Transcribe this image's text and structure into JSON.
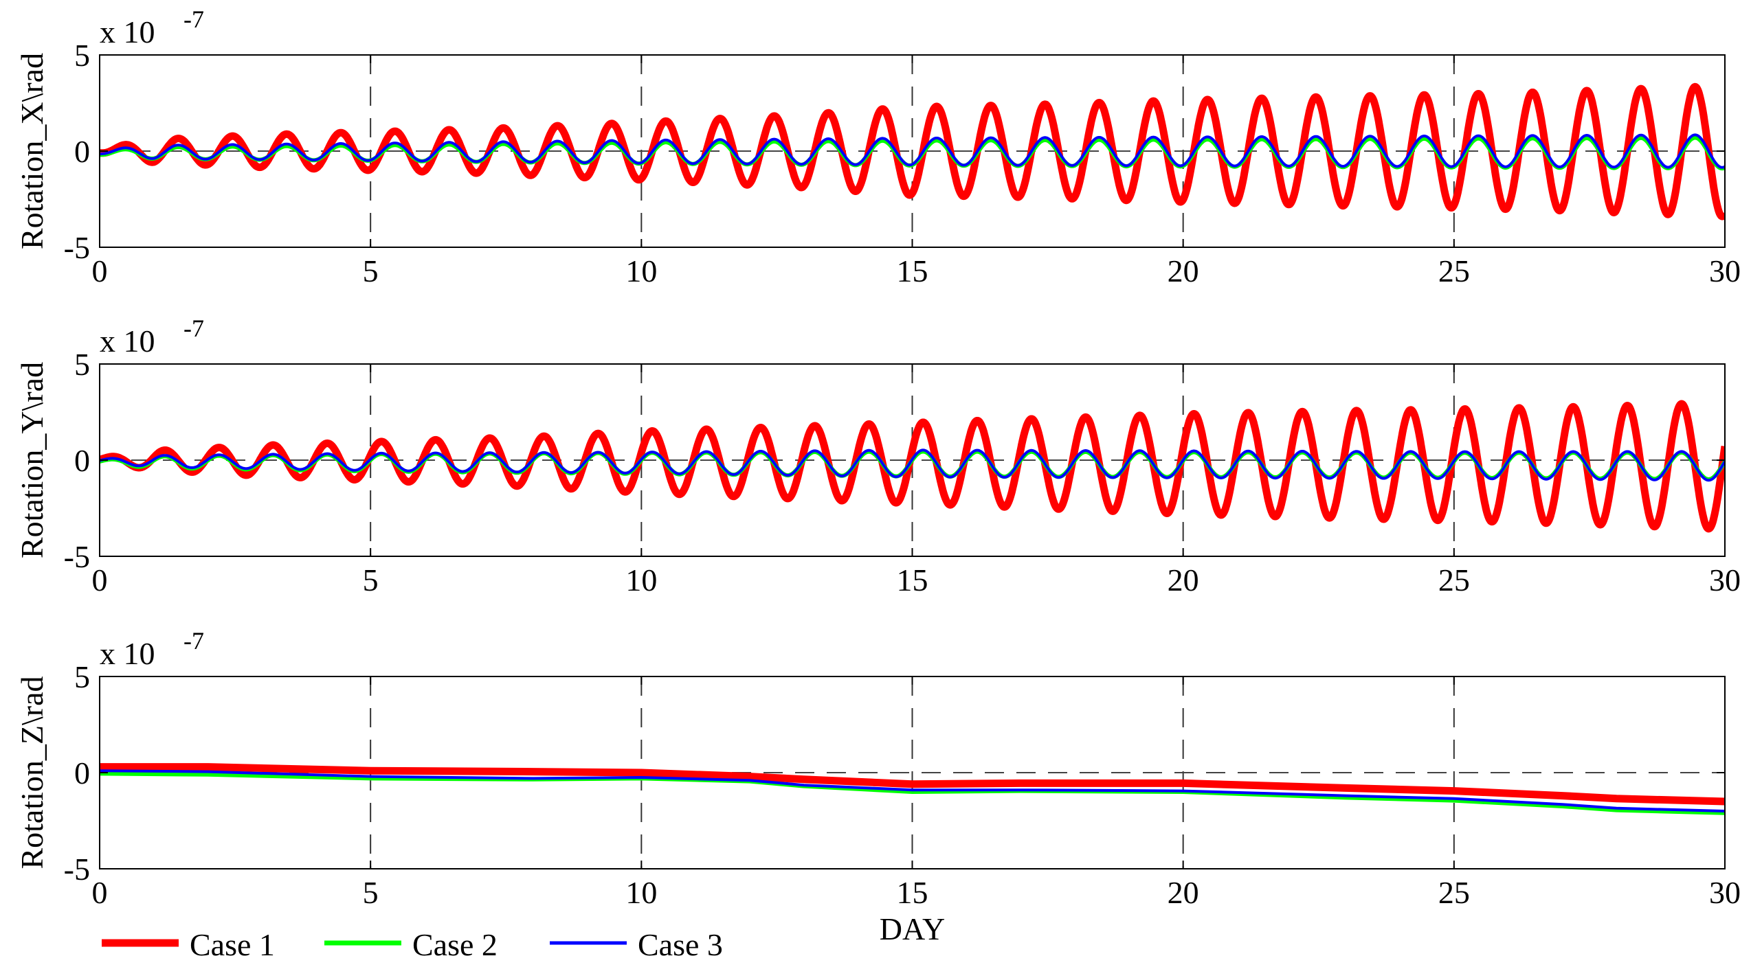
{
  "chart_data": [
    {
      "type": "line",
      "panel": "top",
      "ylabel": "Rotation_X\\rad",
      "exponent_label": "x 10",
      "exponent_power": "-7",
      "xlim": [
        0,
        30
      ],
      "ylim": [
        -5,
        5
      ],
      "xticks": [
        "0",
        "5",
        "10",
        "15",
        "20",
        "25",
        "30"
      ],
      "yticks": [
        "5",
        "0",
        "-5"
      ],
      "vertical_dashed_grid_at": [
        5,
        10,
        15,
        20,
        25
      ],
      "zero_dashed_line": true,
      "oscillation_period_days": 1.0,
      "oscillation_phase_days": 0.2,
      "series": [
        {
          "name": "Case 1",
          "color": "#ff0000",
          "offset": [
            [
              0,
              0
            ],
            [
              30,
              0
            ]
          ],
          "amplitude": [
            [
              0,
              0.1
            ],
            [
              1,
              0.6
            ],
            [
              3,
              0.85
            ],
            [
              5,
              1.0
            ],
            [
              7,
              1.15
            ],
            [
              10,
              1.5
            ],
            [
              13,
              1.9
            ],
            [
              15,
              2.3
            ],
            [
              17,
              2.4
            ],
            [
              20,
              2.65
            ],
            [
              23,
              2.85
            ],
            [
              25,
              2.95
            ],
            [
              27,
              3.1
            ],
            [
              30,
              3.4
            ]
          ]
        },
        {
          "name": "Case 2",
          "color": "#00ff00",
          "offset": [
            [
              0,
              -0.1
            ],
            [
              30,
              -0.1
            ]
          ],
          "amplitude": [
            [
              0,
              0.1
            ],
            [
              1,
              0.3
            ],
            [
              5,
              0.4
            ],
            [
              10,
              0.55
            ],
            [
              15,
              0.65
            ],
            [
              20,
              0.7
            ],
            [
              25,
              0.75
            ],
            [
              30,
              0.8
            ]
          ]
        },
        {
          "name": "Case 3",
          "color": "#0000ff",
          "offset": [
            [
              0,
              -0.05
            ],
            [
              30,
              0
            ]
          ],
          "amplitude": [
            [
              0,
              0.1
            ],
            [
              1,
              0.35
            ],
            [
              5,
              0.45
            ],
            [
              10,
              0.6
            ],
            [
              15,
              0.7
            ],
            [
              20,
              0.75
            ],
            [
              25,
              0.8
            ],
            [
              30,
              0.85
            ]
          ]
        }
      ]
    },
    {
      "type": "line",
      "panel": "middle",
      "ylabel": "Rotation_Y\\rad",
      "exponent_label": "x 10",
      "exponent_power": "-7",
      "xlim": [
        0,
        30
      ],
      "ylim": [
        -5,
        5
      ],
      "xticks": [
        "0",
        "5",
        "10",
        "15",
        "20",
        "25",
        "30"
      ],
      "yticks": [
        "5",
        "0",
        "-5"
      ],
      "vertical_dashed_grid_at": [
        5,
        10,
        15,
        20,
        25
      ],
      "zero_dashed_line": true,
      "oscillation_period_days": 1.0,
      "oscillation_phase_days": 0.95,
      "series": [
        {
          "name": "Case 1",
          "color": "#ff0000",
          "offset": [
            [
              0,
              0
            ],
            [
              30,
              -0.3
            ]
          ],
          "amplitude": [
            [
              0,
              0.1
            ],
            [
              1,
              0.5
            ],
            [
              3,
              0.8
            ],
            [
              5,
              1.0
            ],
            [
              8,
              1.3
            ],
            [
              10,
              1.6
            ],
            [
              13,
              1.9
            ],
            [
              15,
              2.1
            ],
            [
              18,
              2.4
            ],
            [
              20,
              2.6
            ],
            [
              23,
              2.8
            ],
            [
              25,
              2.9
            ],
            [
              28,
              3.1
            ],
            [
              30,
              3.3
            ]
          ]
        },
        {
          "name": "Case 2",
          "color": "#00ff00",
          "offset": [
            [
              0,
              -0.1
            ],
            [
              30,
              -0.3
            ]
          ],
          "amplitude": [
            [
              0,
              0.1
            ],
            [
              1,
              0.3
            ],
            [
              5,
              0.45
            ],
            [
              10,
              0.55
            ],
            [
              15,
              0.65
            ],
            [
              20,
              0.65
            ],
            [
              25,
              0.65
            ],
            [
              30,
              0.7
            ]
          ]
        },
        {
          "name": "Case 3",
          "color": "#0000ff",
          "offset": [
            [
              0,
              -0.05
            ],
            [
              30,
              -0.3
            ]
          ],
          "amplitude": [
            [
              0,
              0.1
            ],
            [
              1,
              0.3
            ],
            [
              5,
              0.45
            ],
            [
              10,
              0.55
            ],
            [
              15,
              0.7
            ],
            [
              20,
              0.7
            ],
            [
              25,
              0.7
            ],
            [
              30,
              0.75
            ]
          ]
        }
      ]
    },
    {
      "type": "line",
      "panel": "bottom",
      "ylabel": "Rotation_Z\\rad",
      "xlabel": "DAY",
      "exponent_label": "x 10",
      "exponent_power": "-7",
      "xlim": [
        0,
        30
      ],
      "ylim": [
        -5,
        5
      ],
      "xticks": [
        "0",
        "5",
        "10",
        "15",
        "20",
        "25",
        "30"
      ],
      "yticks": [
        "5",
        "0",
        "-5"
      ],
      "vertical_dashed_grid_at": [
        5,
        10,
        15,
        20,
        25
      ],
      "zero_dashed_line": true,
      "series": [
        {
          "name": "Case 1",
          "color": "#ff0000",
          "x": [
            0,
            2,
            5,
            8,
            10,
            12,
            13,
            15,
            17,
            20,
            23,
            25,
            27,
            28,
            30
          ],
          "y": [
            0.3,
            0.3,
            0.1,
            0.05,
            0.0,
            -0.2,
            -0.35,
            -0.6,
            -0.55,
            -0.55,
            -0.8,
            -0.95,
            -1.2,
            -1.35,
            -1.5
          ]
        },
        {
          "name": "Case 2",
          "color": "#00ff00",
          "x": [
            0,
            2,
            5,
            8,
            10,
            12,
            13,
            15,
            17,
            20,
            23,
            25,
            27,
            28,
            30
          ],
          "y": [
            -0.05,
            -0.1,
            -0.3,
            -0.35,
            -0.3,
            -0.45,
            -0.7,
            -1.0,
            -0.95,
            -1.0,
            -1.3,
            -1.45,
            -1.75,
            -1.95,
            -2.1
          ]
        },
        {
          "name": "Case 3",
          "color": "#0000ff",
          "x": [
            0,
            2,
            5,
            8,
            10,
            12,
            13,
            15,
            17,
            20,
            23,
            25,
            27,
            28,
            30
          ],
          "y": [
            0.1,
            0.05,
            -0.2,
            -0.3,
            -0.25,
            -0.4,
            -0.65,
            -0.9,
            -0.9,
            -0.95,
            -1.2,
            -1.35,
            -1.65,
            -1.85,
            -2.0
          ]
        }
      ]
    }
  ],
  "legend": {
    "items": [
      {
        "label": "Case 1",
        "color": "#ff0000"
      },
      {
        "label": "Case 2",
        "color": "#00ff00"
      },
      {
        "label": "Case 3",
        "color": "#0000ff"
      }
    ]
  }
}
